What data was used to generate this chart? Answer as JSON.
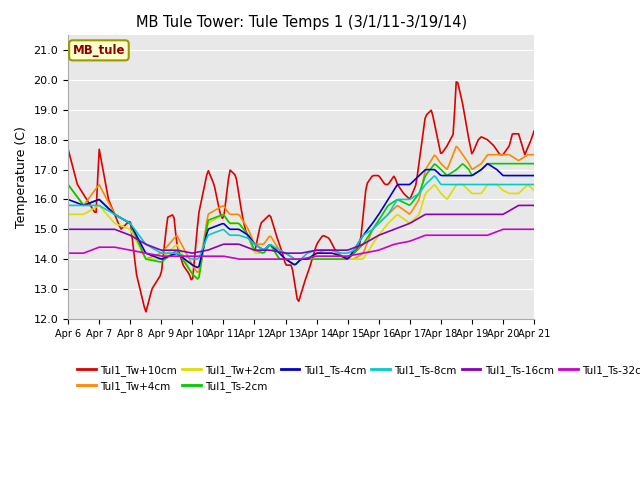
{
  "title": "MB Tule Tower: Tule Temps 1 (3/1/11-3/19/14)",
  "ylabel": "Temperature (C)",
  "ylim": [
    12.0,
    21.5
  ],
  "xlim": [
    0,
    15
  ],
  "bg_color": "#e8e8e8",
  "grid_color": "white",
  "xtick_labels": [
    "Apr 6",
    "Apr 7",
    "Apr 8",
    "Apr 9",
    "Apr 10",
    "Apr 11",
    "Apr 12",
    "Apr 13",
    "Apr 14",
    "Apr 15",
    "Apr 16",
    "Apr 17",
    "Apr 18",
    "Apr 19",
    "Apr 20",
    "Apr 21"
  ],
  "legend_box_label": "MB_tule",
  "legend_box_facecolor": "#ffffcc",
  "legend_box_edgecolor": "#999900",
  "legend_label_color": "#880000",
  "series": [
    {
      "name": "Tul1_Tw+10cm",
      "color": "#dd0000",
      "lw": 1.2
    },
    {
      "name": "Tul1_Tw+4cm",
      "color": "#ff8800",
      "lw": 1.2
    },
    {
      "name": "Tul1_Tw+2cm",
      "color": "#dddd00",
      "lw": 1.2
    },
    {
      "name": "Tul1_Ts-2cm",
      "color": "#00cc00",
      "lw": 1.2
    },
    {
      "name": "Tul1_Ts-4cm",
      "color": "#0000cc",
      "lw": 1.2
    },
    {
      "name": "Tul1_Ts-8cm",
      "color": "#00cccc",
      "lw": 1.2
    },
    {
      "name": "Tul1_Ts-16cm",
      "color": "#8800bb",
      "lw": 1.2
    },
    {
      "name": "Tul1_Ts-32cm",
      "color": "#cc00cc",
      "lw": 1.2
    }
  ]
}
